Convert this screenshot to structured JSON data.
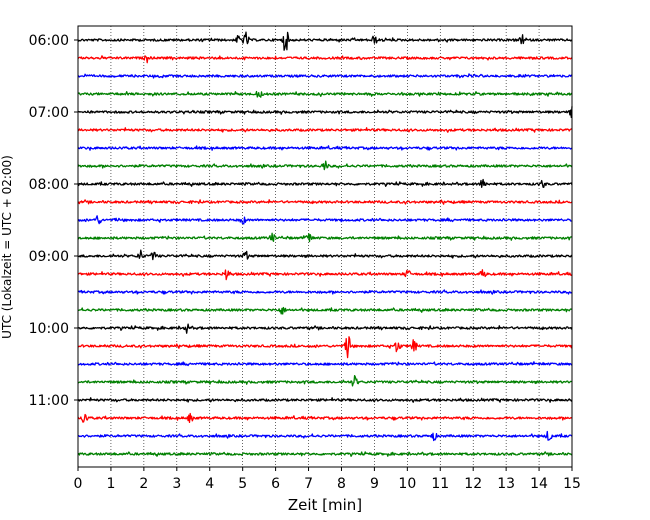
{
  "chart_data": {
    "type": "line",
    "title": "",
    "xlabel": "Zeit  [min]",
    "ylabel": "UTC (Lokalzeit = UTC + 02:00)",
    "xlim": [
      0,
      15
    ],
    "x_ticks": [
      "0",
      "1",
      "2",
      "3",
      "4",
      "5",
      "6",
      "7",
      "8",
      "9",
      "10",
      "11",
      "12",
      "13",
      "14",
      "15"
    ],
    "y_ticks": [
      "06:00",
      "07:00",
      "08:00",
      "09:00",
      "10:00",
      "11:00"
    ],
    "grid": "vertical dotted",
    "trace_interval_minutes": 15,
    "trace_colors": [
      "#000000",
      "#ff0000",
      "#0000ff",
      "#008000"
    ],
    "traces": [
      {
        "start": "06:00"
      },
      {
        "start": "06:15"
      },
      {
        "start": "06:30"
      },
      {
        "start": "06:45"
      },
      {
        "start": "07:00"
      },
      {
        "start": "07:15"
      },
      {
        "start": "07:30"
      },
      {
        "start": "07:45"
      },
      {
        "start": "08:00"
      },
      {
        "start": "08:15"
      },
      {
        "start": "08:30"
      },
      {
        "start": "08:45"
      },
      {
        "start": "09:00"
      },
      {
        "start": "09:15"
      },
      {
        "start": "09:30"
      },
      {
        "start": "09:45"
      },
      {
        "start": "10:00"
      },
      {
        "start": "10:15"
      },
      {
        "start": "10:30"
      },
      {
        "start": "10:45"
      },
      {
        "start": "11:00"
      },
      {
        "start": "11:15"
      },
      {
        "start": "11:30"
      },
      {
        "start": "11:45"
      }
    ],
    "events": [
      {
        "start": "06:00",
        "minute": 4.9,
        "amplitude": 0.35
      },
      {
        "start": "06:00",
        "minute": 5.1,
        "amplitude": 0.4
      },
      {
        "start": "06:00",
        "minute": 6.3,
        "amplitude": 0.8
      },
      {
        "start": "06:00",
        "minute": 9.0,
        "amplitude": 0.25
      },
      {
        "start": "06:00",
        "minute": 13.5,
        "amplitude": 0.25
      },
      {
        "start": "06:15",
        "minute": 2.1,
        "amplitude": 0.2
      },
      {
        "start": "06:45",
        "minute": 5.5,
        "amplitude": 0.25
      },
      {
        "start": "07:00",
        "minute": 15.0,
        "amplitude": 0.3
      },
      {
        "start": "07:45",
        "minute": 7.5,
        "amplitude": 0.3
      },
      {
        "start": "08:00",
        "minute": 12.3,
        "amplitude": 0.35
      },
      {
        "start": "08:00",
        "minute": 14.1,
        "amplitude": 0.25
      },
      {
        "start": "08:30",
        "minute": 0.6,
        "amplitude": 0.3
      },
      {
        "start": "08:30",
        "minute": 5.0,
        "amplitude": 0.25
      },
      {
        "start": "08:45",
        "minute": 5.9,
        "amplitude": 0.25
      },
      {
        "start": "08:45",
        "minute": 7.0,
        "amplitude": 0.3
      },
      {
        "start": "09:00",
        "minute": 1.9,
        "amplitude": 0.3
      },
      {
        "start": "09:00",
        "minute": 2.3,
        "amplitude": 0.25
      },
      {
        "start": "09:00",
        "minute": 5.1,
        "amplitude": 0.25
      },
      {
        "start": "09:15",
        "minute": 4.5,
        "amplitude": 0.35
      },
      {
        "start": "09:15",
        "minute": 10.0,
        "amplitude": 0.25
      },
      {
        "start": "09:15",
        "minute": 12.3,
        "amplitude": 0.25
      },
      {
        "start": "09:45",
        "minute": 6.2,
        "amplitude": 0.25
      },
      {
        "start": "10:00",
        "minute": 3.3,
        "amplitude": 0.25
      },
      {
        "start": "10:15",
        "minute": 8.2,
        "amplitude": 0.8
      },
      {
        "start": "10:15",
        "minute": 9.7,
        "amplitude": 0.4
      },
      {
        "start": "10:15",
        "minute": 10.2,
        "amplitude": 0.35
      },
      {
        "start": "10:45",
        "minute": 8.4,
        "amplitude": 0.35
      },
      {
        "start": "11:15",
        "minute": 0.2,
        "amplitude": 0.4
      },
      {
        "start": "11:15",
        "minute": 3.4,
        "amplitude": 0.25
      },
      {
        "start": "11:30",
        "minute": 10.8,
        "amplitude": 0.25
      },
      {
        "start": "11:30",
        "minute": 14.3,
        "amplitude": 0.35
      }
    ]
  }
}
